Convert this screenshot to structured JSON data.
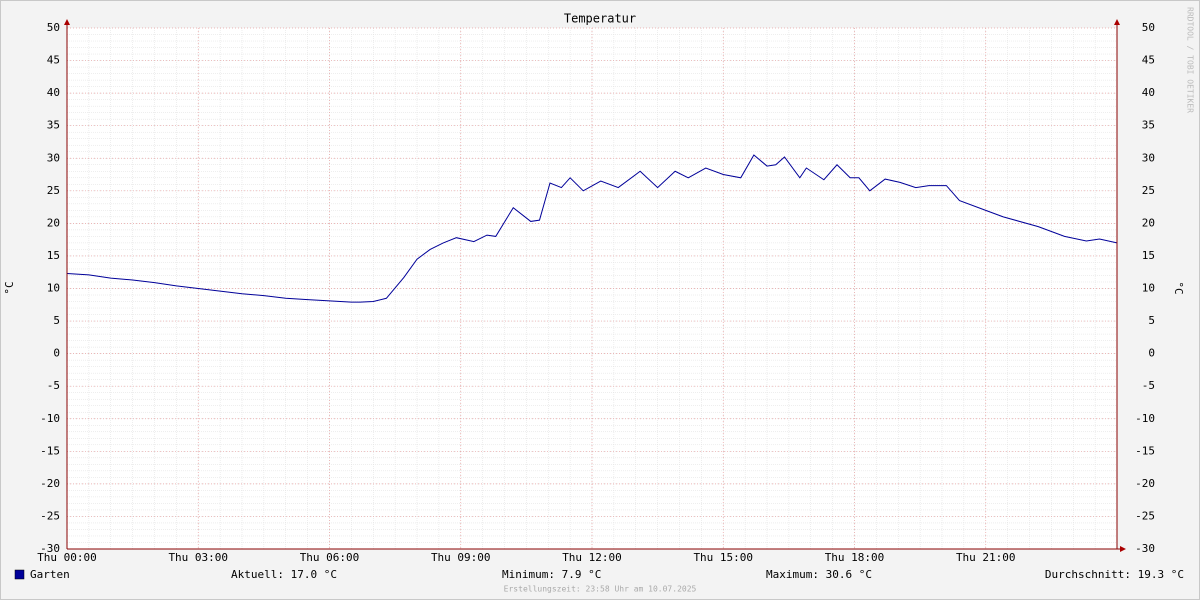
{
  "chart_data": {
    "type": "line",
    "title": "Temperatur",
    "ylabel": "°C",
    "x": [
      0,
      0.5,
      1,
      1.5,
      2,
      2.5,
      3,
      3.5,
      4,
      4.5,
      5,
      5.5,
      6,
      6.5,
      6.7,
      7,
      7.3,
      7.7,
      8,
      8.3,
      8.6,
      8.9,
      9.3,
      9.6,
      9.8,
      10.2,
      10.6,
      10.8,
      11.04,
      11.3,
      11.5,
      11.8,
      12.2,
      12.6,
      13.1,
      13.5,
      13.9,
      14.2,
      14.6,
      15,
      15.4,
      15.7,
      16,
      16.2,
      16.4,
      16.75,
      16.9,
      17.3,
      17.6,
      17.9,
      18.1,
      18.35,
      18.7,
      19.04,
      19.4,
      19.7,
      20.1,
      20.4,
      21,
      21.4,
      22.2,
      22.8,
      23.3,
      23.6,
      24
    ],
    "series": [
      {
        "name": "Garten",
        "color": "#000099",
        "values": [
          12.3,
          12.1,
          11.6,
          11.3,
          10.9,
          10.4,
          10.0,
          9.6,
          9.2,
          8.9,
          8.5,
          8.3,
          8.1,
          7.9,
          7.9,
          8.0,
          8.5,
          11.7,
          14.5,
          16.0,
          17.0,
          17.8,
          17.2,
          18.2,
          18.0,
          22.4,
          20.3,
          20.5,
          26.2,
          25.5,
          27.0,
          25.0,
          26.5,
          25.5,
          28.0,
          25.5,
          28.0,
          27.0,
          28.5,
          27.5,
          27.0,
          30.5,
          28.8,
          29.0,
          30.2,
          27.0,
          28.5,
          26.7,
          29.0,
          27.0,
          27.0,
          25.0,
          26.8,
          26.3,
          25.5,
          25.8,
          25.8,
          23.5,
          22.0,
          21.0,
          19.5,
          18.0,
          17.3,
          17.6,
          17.0
        ]
      }
    ],
    "xlim": [
      0,
      24
    ],
    "xticks": [
      {
        "value": 0,
        "label": "Thu 00:00"
      },
      {
        "value": 3,
        "label": "Thu 03:00"
      },
      {
        "value": 6,
        "label": "Thu 06:00"
      },
      {
        "value": 9,
        "label": "Thu 09:00"
      },
      {
        "value": 12,
        "label": "Thu 12:00"
      },
      {
        "value": 15,
        "label": "Thu 15:00"
      },
      {
        "value": 18,
        "label": "Thu 18:00"
      },
      {
        "value": 21,
        "label": "Thu 21:00"
      }
    ],
    "ylim": [
      -30,
      50
    ],
    "yticks": [
      -30,
      -25,
      -20,
      -15,
      -10,
      -5,
      0,
      5,
      10,
      15,
      20,
      25,
      30,
      35,
      40,
      45,
      50
    ],
    "grid": true,
    "stats": [
      "Aktuell: 17.0 °C",
      "Minimum: 7.9 °C",
      "Maximum: 30.6 °C",
      "Durchschnitt: 19.3 °C"
    ],
    "footer": "Erstellungszeit: 23:58 Uhr am 10.07.2025",
    "watermark": "RRDTOOL / TOBI OETIKER"
  }
}
